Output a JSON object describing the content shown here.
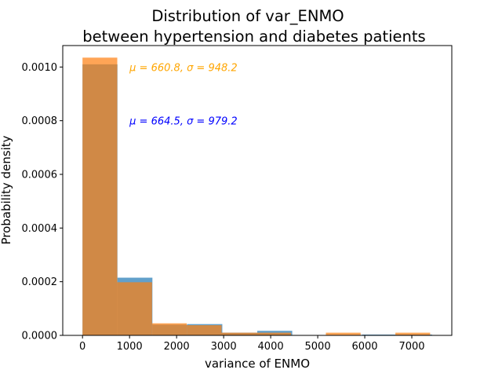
{
  "chart_data": {
    "type": "bar",
    "title_lines": [
      "Distribution of var_ENMO",
      "between hypertension and diabetes patients"
    ],
    "xlabel": "variance of ENMO",
    "ylabel": "Probability density",
    "xlim": [
      -420,
      7850
    ],
    "ylim": [
      0,
      0.00108
    ],
    "xticks": [
      0,
      1000,
      2000,
      3000,
      4000,
      5000,
      6000,
      7000
    ],
    "xtick_labels": [
      "0",
      "1000",
      "2000",
      "3000",
      "4000",
      "5000",
      "6000",
      "7000"
    ],
    "yticks": [
      0,
      0.0002,
      0.0004,
      0.0006,
      0.0008,
      0.001
    ],
    "ytick_labels": [
      "0.0000",
      "0.0002",
      "0.0004",
      "0.0006",
      "0.0008",
      "0.0010"
    ],
    "grid": false,
    "series": [
      {
        "color": "#1f77b4",
        "opacity": 0.7,
        "bin_edges": [
          0,
          743,
          1486,
          2229,
          2972,
          3715,
          4458,
          5201,
          5944,
          6687,
          7430
        ],
        "values": [
          0.00101,
          0.000215,
          4e-05,
          4.2e-05,
          1e-05,
          1.7e-05,
          0.0,
          0.0,
          3e-06,
          3e-06
        ]
      },
      {
        "color": "#ff7f0e",
        "opacity": 0.7,
        "bin_edges": [
          0,
          739,
          1478,
          2217,
          2956,
          3695,
          4434,
          5173,
          5912,
          6651,
          7390
        ],
        "values": [
          0.001035,
          0.000198,
          4.5e-05,
          3.8e-05,
          1e-05,
          1e-05,
          0.0,
          1e-05,
          0.0,
          1e-05
        ]
      }
    ],
    "annotations": [
      {
        "text": "μ = 660.8, σ = 948.2",
        "color": "#ffa500",
        "x": 1000,
        "y": 0.001
      },
      {
        "text": "μ = 664.5, σ = 979.2",
        "color": "#0000ff",
        "x": 1000,
        "y": 0.0008
      }
    ]
  }
}
